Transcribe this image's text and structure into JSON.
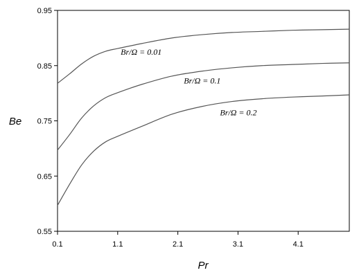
{
  "chart_data": {
    "type": "line",
    "xlabel": "Pr",
    "ylabel": "Be",
    "xlim": [
      0.1,
      4.95
    ],
    "ylim": [
      0.55,
      0.95
    ],
    "x_ticks": [
      "0.1",
      "1.1",
      "2.1",
      "3.1",
      "4.1"
    ],
    "y_ticks": [
      "0.55",
      "0.65",
      "0.75",
      "0.85",
      "0.95"
    ],
    "grid": false,
    "line_color": "#555555",
    "series": [
      {
        "name": "Br/Ω = 0.01",
        "x": [
          0.1,
          0.3,
          0.5,
          0.7,
          0.9,
          1.1,
          1.5,
          2.0,
          2.5,
          3.0,
          3.5,
          4.0,
          4.5,
          4.95
        ],
        "y": [
          0.818,
          0.835,
          0.853,
          0.867,
          0.876,
          0.881,
          0.89,
          0.9,
          0.906,
          0.91,
          0.912,
          0.914,
          0.915,
          0.916
        ]
      },
      {
        "name": "Br/Ω = 0.1",
        "x": [
          0.1,
          0.3,
          0.5,
          0.7,
          0.9,
          1.1,
          1.5,
          2.0,
          2.5,
          3.0,
          3.5,
          4.0,
          4.5,
          4.95
        ],
        "y": [
          0.697,
          0.725,
          0.755,
          0.777,
          0.792,
          0.801,
          0.816,
          0.831,
          0.84,
          0.846,
          0.85,
          0.852,
          0.854,
          0.855
        ]
      },
      {
        "name": "Br/Ω = 0.2",
        "x": [
          0.1,
          0.3,
          0.5,
          0.7,
          0.9,
          1.1,
          1.5,
          2.0,
          2.5,
          3.0,
          3.5,
          4.0,
          4.5,
          4.95
        ],
        "y": [
          0.597,
          0.635,
          0.67,
          0.695,
          0.712,
          0.722,
          0.74,
          0.762,
          0.776,
          0.785,
          0.79,
          0.793,
          0.795,
          0.797
        ]
      }
    ],
    "annotations": [
      {
        "text": "Br/Ω = 0.01",
        "x": 1.15,
        "y": 0.87
      },
      {
        "text": "Br/Ω = 0.1",
        "x": 2.2,
        "y": 0.818
      },
      {
        "text": "Br/Ω = 0.2",
        "x": 2.8,
        "y": 0.76
      }
    ]
  }
}
